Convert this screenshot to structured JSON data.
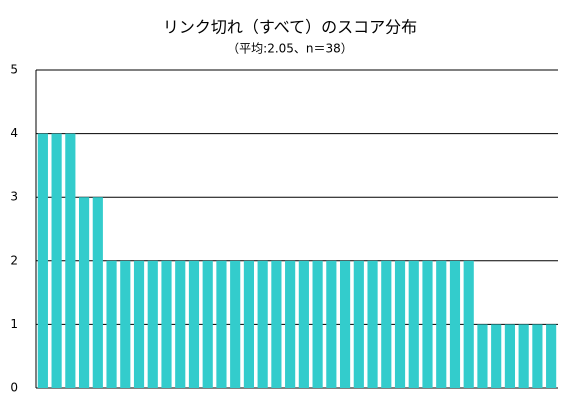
{
  "chart_data": {
    "type": "bar",
    "title": "リンク切れ（すべて）のスコア分布",
    "subtitle": "（平均:2.05、n＝38）",
    "categories": [
      null,
      null,
      null,
      null,
      null,
      null,
      null,
      null,
      null,
      null,
      null,
      null,
      null,
      null,
      null,
      null,
      null,
      null,
      null,
      null,
      null,
      null,
      null,
      null,
      null,
      null,
      null,
      null,
      null,
      null,
      null,
      null,
      null,
      null,
      null,
      null,
      null,
      null
    ],
    "values": [
      4,
      4,
      4,
      3,
      3,
      2,
      2,
      2,
      2,
      2,
      2,
      2,
      2,
      2,
      2,
      2,
      2,
      2,
      2,
      2,
      2,
      2,
      2,
      2,
      2,
      2,
      2,
      2,
      2,
      2,
      2,
      2,
      1,
      1,
      1,
      1,
      1,
      1
    ],
    "color": "#33cccc",
    "ylim": [
      0,
      5
    ],
    "yticks": [
      0,
      1,
      2,
      3,
      4,
      5
    ],
    "grid": true
  }
}
